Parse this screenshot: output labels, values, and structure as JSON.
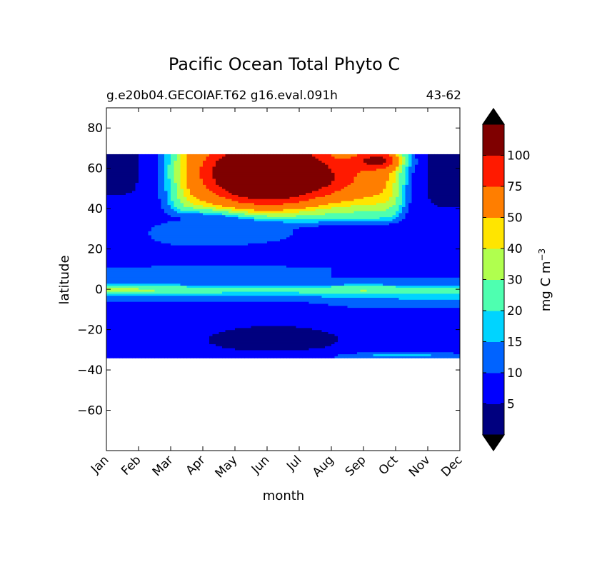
{
  "chart_data": {
    "type": "heatmap",
    "title": "Pacific Ocean Total Phyto C",
    "subtitle_left": "g.e20b04.GECOIAF.T62 g16.eval.091h",
    "subtitle_right": "43-62",
    "xlabel": "month",
    "ylabel": "latitude",
    "colorbar_label": "mg C m",
    "colorbar_label_exp": "−3",
    "x_categories": [
      "Jan",
      "Feb",
      "Mar",
      "Apr",
      "May",
      "Jun",
      "Jul",
      "Aug",
      "Sep",
      "Oct",
      "Nov",
      "Dec"
    ],
    "y_ticks": [
      {
        "value": 80,
        "label": "80"
      },
      {
        "value": 60,
        "label": "60"
      },
      {
        "value": 40,
        "label": "40"
      },
      {
        "value": 20,
        "label": "20"
      },
      {
        "value": 0,
        "label": "0"
      },
      {
        "value": -20,
        "label": "−20"
      },
      {
        "value": -40,
        "label": "−40"
      },
      {
        "value": -60,
        "label": "−60"
      }
    ],
    "xlim": [
      0,
      11
    ],
    "ylim": [
      -80,
      90
    ],
    "data_lat_range": [
      -34,
      67
    ],
    "contour_levels": [
      0,
      5,
      10,
      15,
      20,
      30,
      40,
      50,
      75,
      100
    ],
    "colorbar_ticks": [
      "5",
      "10",
      "15",
      "20",
      "30",
      "40",
      "50",
      "75",
      "100"
    ],
    "colors": {
      "under": "#000000",
      "bins": [
        "#00007f",
        "#0000ff",
        "#0063ff",
        "#00d4ff",
        "#4effb0",
        "#b0ff4e",
        "#ffe500",
        "#ff7e00",
        "#ff1a00",
        "#7f0000"
      ],
      "over": "#000000"
    },
    "regions": [
      {
        "lat": [
          -34,
          -30
        ],
        "months": [
          0,
          11
        ],
        "level": "5-10",
        "note": "southern edge band"
      },
      {
        "lat": [
          -30,
          -18
        ],
        "months": [
          4.2,
          6.2
        ],
        "level": "0-5"
      },
      {
        "lat": [
          -5,
          5
        ],
        "months": [
          0,
          11
        ],
        "level": "10-20",
        "note": "equatorial band"
      },
      {
        "lat": [
          -1,
          1
        ],
        "months": [
          0,
          2.5
        ],
        "level": "30-40",
        "note": "equator maximum"
      },
      {
        "lat": [
          50,
          67
        ],
        "months": [
          0,
          0.8
        ],
        "level": "0-5"
      },
      {
        "lat": [
          40,
          67
        ],
        "months": [
          10,
          11
        ],
        "level": "0-5"
      },
      {
        "lat": [
          32,
          67
        ],
        "months": [
          2.2,
          9
        ],
        "level": "30-100+",
        "note": "spring–summer bloom"
      },
      {
        "lat": [
          45,
          67
        ],
        "months": [
          3.6,
          5.9
        ],
        "level": ">100",
        "note": "bloom peak"
      }
    ],
    "grid": false,
    "legend": "colorbar-right"
  }
}
